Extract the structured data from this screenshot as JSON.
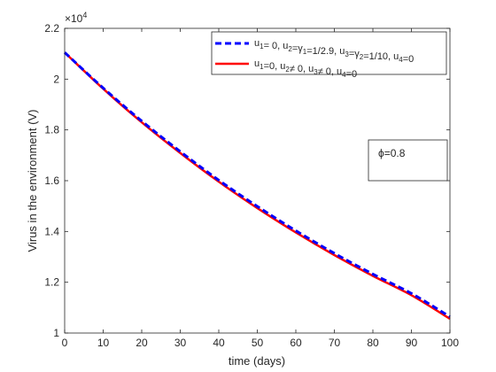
{
  "chart_data": {
    "type": "line",
    "xlabel": "time (days)",
    "ylabel": "Virus in the environment (V)",
    "xlim": [
      0,
      100
    ],
    "ylim": [
      10000,
      22000
    ],
    "x_ticks": [
      0,
      10,
      20,
      30,
      40,
      50,
      60,
      70,
      80,
      90,
      100
    ],
    "x_tick_labels": [
      "0",
      "10",
      "20",
      "30",
      "40",
      "50",
      "60",
      "70",
      "80",
      "90",
      "100"
    ],
    "y_ticks": [
      10000,
      12000,
      14000,
      16000,
      18000,
      20000,
      22000
    ],
    "y_tick_labels": [
      "1",
      "1.2",
      "1.4",
      "1.6",
      "1.8",
      "2",
      "2.2"
    ],
    "y_exponent_label": "×10",
    "y_exponent_power": "4",
    "grid": false,
    "legend_position": "top-right",
    "annotation": "ϕ=0.8",
    "x": [
      0,
      10,
      20,
      30,
      40,
      50,
      60,
      70,
      80,
      90,
      100
    ],
    "series": [
      {
        "name": "u1= 0, u2=γ1=1/2.9, u3=γ2=1/10, u4=0",
        "legend_parts": [
          [
            "u",
            ""
          ],
          [
            "1",
            "sub"
          ],
          [
            "= 0, u",
            ""
          ],
          [
            "2",
            "sub"
          ],
          [
            "=",
            ""
          ],
          [
            "γ",
            ""
          ],
          [
            "1",
            "sub"
          ],
          [
            "=1/2.9, u",
            ""
          ],
          [
            "3",
            "sub"
          ],
          [
            "=",
            ""
          ],
          [
            "γ",
            ""
          ],
          [
            "2",
            "sub"
          ],
          [
            "=1/10, u",
            ""
          ],
          [
            "4",
            "sub"
          ],
          [
            "=0",
            ""
          ]
        ],
        "color": "#0000ff",
        "style": "dashed",
        "values": [
          21050,
          19650,
          18350,
          17150,
          16020,
          14990,
          14030,
          13140,
          12320,
          11560,
          10640
        ]
      },
      {
        "name": "u1=0, u2≠ 0, u3≠ 0, u4=0",
        "legend_parts": [
          [
            "u",
            ""
          ],
          [
            "1",
            "sub"
          ],
          [
            "=0, u",
            ""
          ],
          [
            "2",
            "sub"
          ],
          [
            "≠ 0, u",
            ""
          ],
          [
            "3",
            "sub"
          ],
          [
            "≠ 0, u",
            ""
          ],
          [
            "4",
            "sub"
          ],
          [
            "=0",
            ""
          ]
        ],
        "color": "#ff0000",
        "style": "solid",
        "values": [
          21050,
          19620,
          18300,
          17090,
          15960,
          14920,
          13960,
          13070,
          12250,
          11490,
          10560
        ]
      }
    ]
  }
}
